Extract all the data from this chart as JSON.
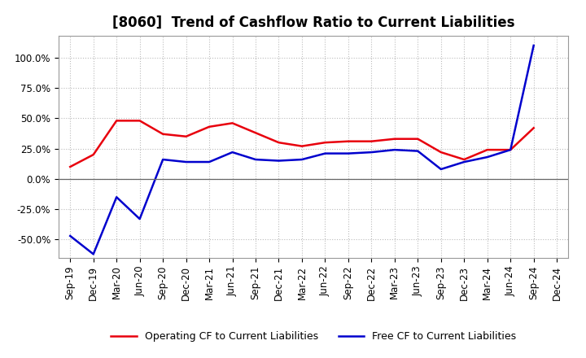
{
  "title": "[8060]  Trend of Cashflow Ratio to Current Liabilities",
  "x_labels": [
    "Sep-19",
    "Dec-19",
    "Mar-20",
    "Jun-20",
    "Sep-20",
    "Dec-20",
    "Mar-21",
    "Jun-21",
    "Sep-21",
    "Dec-21",
    "Mar-22",
    "Jun-22",
    "Sep-22",
    "Dec-22",
    "Mar-23",
    "Jun-23",
    "Sep-23",
    "Dec-23",
    "Mar-24",
    "Jun-24",
    "Sep-24",
    "Dec-24"
  ],
  "operating_cf": [
    10.0,
    20.0,
    48.0,
    48.0,
    37.0,
    35.0,
    43.0,
    46.0,
    38.0,
    30.0,
    27.0,
    30.0,
    31.0,
    31.0,
    33.0,
    33.0,
    22.0,
    16.0,
    24.0,
    24.0,
    42.0,
    null
  ],
  "free_cf": [
    -47.0,
    -62.0,
    -15.0,
    -33.0,
    16.0,
    14.0,
    14.0,
    22.0,
    16.0,
    15.0,
    16.0,
    21.0,
    21.0,
    22.0,
    24.0,
    23.0,
    8.0,
    14.0,
    18.0,
    24.0,
    110.0,
    null
  ],
  "operating_color": "#e8000d",
  "free_color": "#0000cd",
  "ylim": [
    -65,
    118
  ],
  "yticks": [
    -50.0,
    -25.0,
    0.0,
    25.0,
    50.0,
    75.0,
    100.0
  ],
  "background_color": "#ffffff",
  "grid_color": "#aaaaaa",
  "title_fontsize": 12,
  "legend_fontsize": 9,
  "axis_fontsize": 8.5
}
